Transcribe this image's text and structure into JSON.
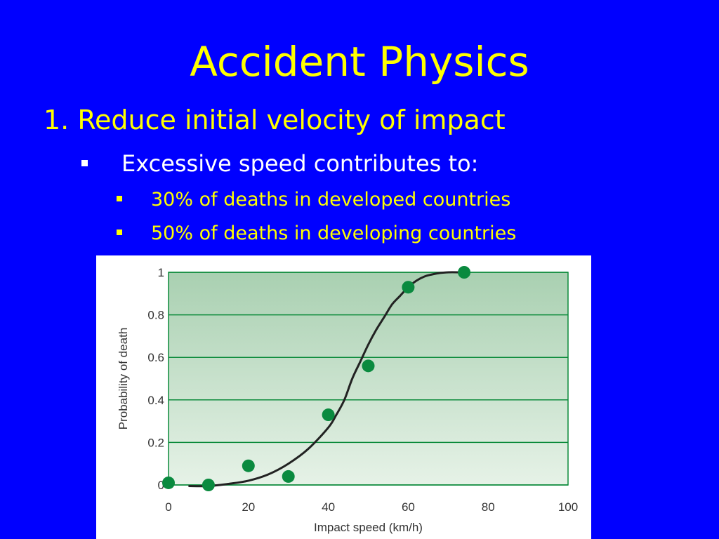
{
  "slide": {
    "title": "Accident Physics",
    "point": "1. Reduce initial velocity of impact",
    "subpoint": "Excessive speed contributes to:",
    "details": [
      "30% of deaths in developed countries",
      "50% of deaths in developing countries"
    ]
  },
  "colors": {
    "background": "#0000FF",
    "title": "#FFFF00",
    "point": "#FFFF00",
    "subpoint": "#FFFFFF",
    "detail": "#FFFF00",
    "plot_top": "#A9D0B1",
    "plot_bottom": "#E6F2E7",
    "grid": "#0B8A3A",
    "curve": "#222222",
    "points": "#0A8A3F"
  },
  "chart_data": {
    "type": "scatter",
    "title": "",
    "xlabel": "Impact speed (km/h)",
    "ylabel": "Probability of death",
    "xlim": [
      0,
      100
    ],
    "ylim": [
      0,
      1
    ],
    "x_ticks": [
      0,
      20,
      40,
      60,
      80,
      100
    ],
    "y_ticks": [
      0,
      0.2,
      0.4,
      0.6,
      0.8,
      1
    ],
    "x_tick_labels": [
      "0",
      "20",
      "40",
      "60",
      "80",
      "100"
    ],
    "y_tick_labels": [
      "0",
      "0.2",
      "0.4",
      "0.6",
      "0.8",
      "1"
    ],
    "grid": "horizontal",
    "legend": "none",
    "series": [
      {
        "type": "scatter",
        "x": [
          0,
          10,
          20,
          30,
          40,
          50,
          60,
          74
        ],
        "y": [
          0.01,
          0.0,
          0.09,
          0.04,
          0.33,
          0.56,
          0.93,
          1.0
        ]
      },
      {
        "type": "line",
        "x": [
          5,
          10,
          15,
          20,
          25,
          30,
          35,
          40,
          42,
          44,
          46,
          48,
          50,
          52,
          54,
          56,
          58,
          60,
          62,
          64,
          66,
          68,
          70,
          73
        ],
        "y": [
          -0.005,
          -0.005,
          0.005,
          0.02,
          0.05,
          0.1,
          0.17,
          0.27,
          0.33,
          0.4,
          0.5,
          0.58,
          0.66,
          0.73,
          0.79,
          0.85,
          0.89,
          0.93,
          0.96,
          0.98,
          0.99,
          0.997,
          1.0,
          1.0
        ]
      }
    ]
  }
}
